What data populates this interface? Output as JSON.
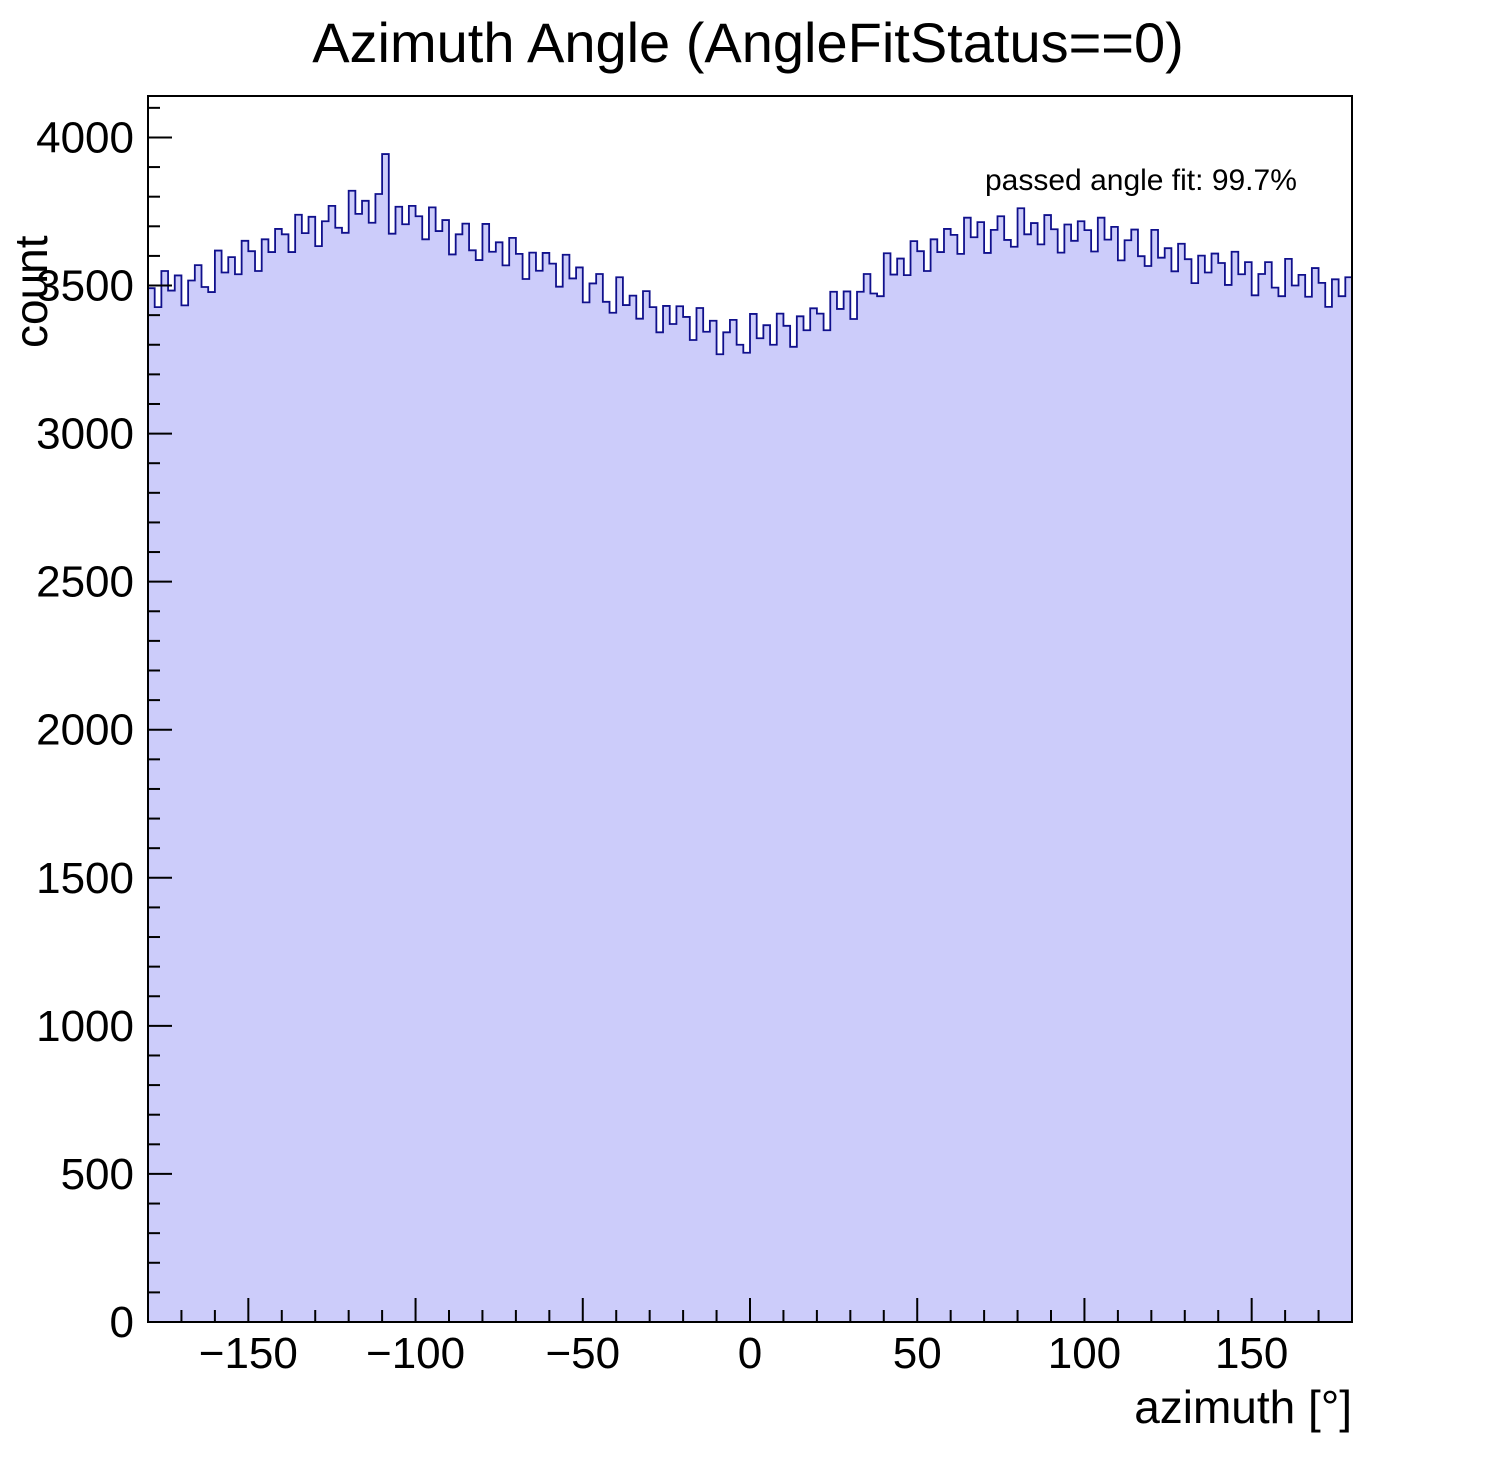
{
  "chart_data": {
    "type": "bar",
    "subtype": "histogram",
    "title": "Azimuth Angle (AngleFitStatus==0)",
    "xlabel": "azimuth [°]",
    "ylabel": "count",
    "annotation": "passed angle fit: 99.7%",
    "legend": "none",
    "grid": "off",
    "xlim": [
      -180,
      180
    ],
    "ylim": [
      0,
      4140
    ],
    "bin_start": -180,
    "bin_width": 2,
    "n_bins": 180,
    "fill_color": "#ccccfa",
    "line_color": "#10108c",
    "frame_color": "#000000",
    "x_ticks": [
      {
        "value": -150,
        "label": "−150"
      },
      {
        "value": -100,
        "label": "−100"
      },
      {
        "value": -50,
        "label": "−50"
      },
      {
        "value": 0,
        "label": "0"
      },
      {
        "value": 50,
        "label": "50"
      },
      {
        "value": 100,
        "label": "100"
      },
      {
        "value": 150,
        "label": "150"
      }
    ],
    "x_minor_step": 10,
    "y_ticks": [
      {
        "value": 0,
        "label": "0"
      },
      {
        "value": 500,
        "label": "500"
      },
      {
        "value": 1000,
        "label": "1000"
      },
      {
        "value": 1500,
        "label": "1500"
      },
      {
        "value": 2000,
        "label": "2000"
      },
      {
        "value": 2500,
        "label": "2500"
      },
      {
        "value": 3000,
        "label": "3000"
      },
      {
        "value": 3500,
        "label": "3500"
      },
      {
        "value": 4000,
        "label": "4000"
      }
    ],
    "y_minor_step": 100,
    "values": [
      3491,
      3427,
      3549,
      3483,
      3534,
      3433,
      3517,
      3569,
      3495,
      3478,
      3618,
      3544,
      3596,
      3538,
      3651,
      3616,
      3549,
      3656,
      3613,
      3691,
      3673,
      3613,
      3739,
      3677,
      3732,
      3633,
      3717,
      3769,
      3695,
      3678,
      3820,
      3742,
      3786,
      3712,
      3809,
      3944,
      3675,
      3766,
      3707,
      3769,
      3734,
      3656,
      3764,
      3684,
      3721,
      3605,
      3673,
      3709,
      3619,
      3586,
      3708,
      3614,
      3646,
      3568,
      3661,
      3607,
      3522,
      3611,
      3550,
      3610,
      3574,
      3496,
      3604,
      3524,
      3561,
      3443,
      3507,
      3539,
      3445,
      3408,
      3528,
      3434,
      3466,
      3388,
      3481,
      3427,
      3342,
      3431,
      3370,
      3430,
      3394,
      3316,
      3424,
      3344,
      3381,
      3268,
      3342,
      3384,
      3300,
      3273,
      3404,
      3322,
      3366,
      3300,
      3405,
      3364,
      3293,
      3396,
      3349,
      3423,
      3405,
      3349,
      3479,
      3421,
      3480,
      3387,
      3479,
      3539,
      3473,
      3464,
      3609,
      3537,
      3591,
      3535,
      3650,
      3616,
      3549,
      3656,
      3613,
      3691,
      3671,
      3607,
      3729,
      3663,
      3714,
      3610,
      3688,
      3734,
      3654,
      3631,
      3761,
      3673,
      3711,
      3639,
      3738,
      3690,
      3611,
      3706,
      3651,
      3717,
      3687,
      3615,
      3729,
      3655,
      3698,
      3585,
      3653,
      3689,
      3599,
      3566,
      3688,
      3594,
      3626,
      3548,
      3641,
      3589,
      3508,
      3601,
      3544,
      3608,
      3576,
      3502,
      3614,
      3538,
      3579,
      3467,
      3539,
      3579,
      3493,
      3464,
      3590,
      3500,
      3536,
      3462,
      3559,
      3509,
      3428,
      3521,
      3464,
      3528
    ]
  }
}
